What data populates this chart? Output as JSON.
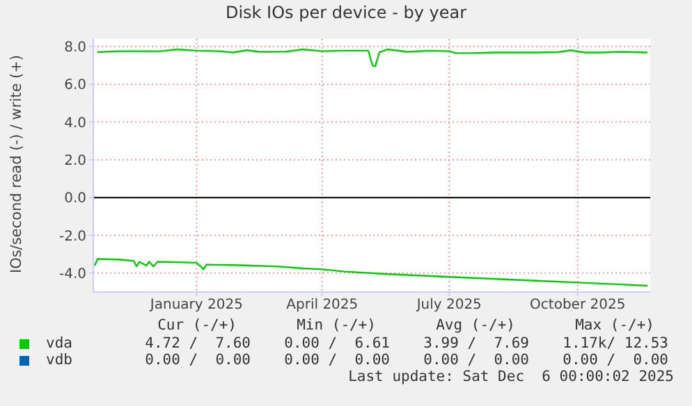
{
  "chart_data": {
    "type": "line",
    "title": "Disk IOs per device - by year",
    "ylabel": "IOs/second read (-) / write (+)",
    "xlim": [
      "2024-11-02",
      "2025-12-06"
    ],
    "xticks": [
      {
        "value": "2025-01-15",
        "label": "January 2025"
      },
      {
        "value": "2025-04-15",
        "label": "April 2025"
      },
      {
        "value": "2025-07-15",
        "label": "July 2025"
      },
      {
        "value": "2025-10-15",
        "label": "October 2025"
      }
    ],
    "ylim": [
      -5,
      8.4
    ],
    "yticks": [
      {
        "value": -4,
        "label": "-4.0"
      },
      {
        "value": -2,
        "label": "-2.0"
      },
      {
        "value": 0,
        "label": "0.0"
      },
      {
        "value": 2,
        "label": "2.0"
      },
      {
        "value": 4,
        "label": "4.0"
      },
      {
        "value": 6,
        "label": "6.0"
      },
      {
        "value": 8,
        "label": "8.0"
      }
    ],
    "grid": true,
    "legend": "bottom",
    "marker": "none",
    "ref_lines": [
      {
        "axis": "y",
        "value": 0,
        "color": "#000000"
      }
    ],
    "series": [
      {
        "name": "vda",
        "color": "#00cc00",
        "x": [
          "2024-11-05",
          "2024-11-20",
          "2024-12-10",
          "2024-12-20",
          "2025-01-01",
          "2025-01-15",
          "2025-02-01",
          "2025-02-10",
          "2025-02-20",
          "2025-03-01",
          "2025-03-20",
          "2025-04-01",
          "2025-04-15",
          "2025-05-01",
          "2025-05-18",
          "2025-05-21",
          "2025-05-23",
          "2025-05-26",
          "2025-06-01",
          "2025-06-15",
          "2025-07-01",
          "2025-07-15",
          "2025-07-20",
          "2025-08-01",
          "2025-08-15",
          "2025-09-01",
          "2025-09-15",
          "2025-10-01",
          "2025-10-10",
          "2025-10-20",
          "2025-11-01",
          "2025-11-15",
          "2025-12-04"
        ],
        "values": [
          7.7,
          7.75,
          7.75,
          7.75,
          7.85,
          7.78,
          7.75,
          7.68,
          7.8,
          7.72,
          7.73,
          7.85,
          7.75,
          7.78,
          7.78,
          7.0,
          6.95,
          7.7,
          7.85,
          7.72,
          7.78,
          7.75,
          7.65,
          7.65,
          7.68,
          7.68,
          7.68,
          7.7,
          7.8,
          7.68,
          7.68,
          7.72,
          7.68
        ]
      },
      {
        "color": "#00cc00",
        "x": [
          "2024-11-03",
          "2024-11-05",
          "2024-11-20",
          "2024-12-01",
          "2024-12-03",
          "2024-12-05",
          "2024-12-10",
          "2024-12-12",
          "2024-12-15",
          "2024-12-18",
          "2025-01-01",
          "2025-01-15",
          "2025-01-20",
          "2025-01-22",
          "2025-02-15",
          "2025-03-15",
          "2025-04-01",
          "2025-04-15",
          "2025-05-01",
          "2025-06-01",
          "2025-06-15",
          "2025-07-15",
          "2025-08-15",
          "2025-09-15",
          "2025-10-15",
          "2025-11-15",
          "2025-12-04"
        ],
        "values": [
          -3.6,
          -3.25,
          -3.28,
          -3.35,
          -3.65,
          -3.4,
          -3.6,
          -3.4,
          -3.65,
          -3.4,
          -3.42,
          -3.45,
          -3.8,
          -3.55,
          -3.58,
          -3.65,
          -3.75,
          -3.8,
          -3.92,
          -4.05,
          -4.1,
          -4.2,
          -4.3,
          -4.4,
          -4.5,
          -4.6,
          -4.67
        ]
      },
      {
        "name": "vdb",
        "color": "#0066b3"
      }
    ],
    "annotations": [
      "Cur (-/+)",
      "Min (-/+)",
      "Avg (-/+)",
      "Max (-/+)",
      "4.72 /  7.60",
      "0.00 /  6.61",
      "3.99 /  7.69",
      "1.17k/ 12.53",
      "0.00 /  0.00",
      "0.00 /  0.00",
      "0.00 /  0.00",
      "0.00 /  0.00",
      "Last update: Sat Dec  6 00:00:02 2025"
    ]
  }
}
